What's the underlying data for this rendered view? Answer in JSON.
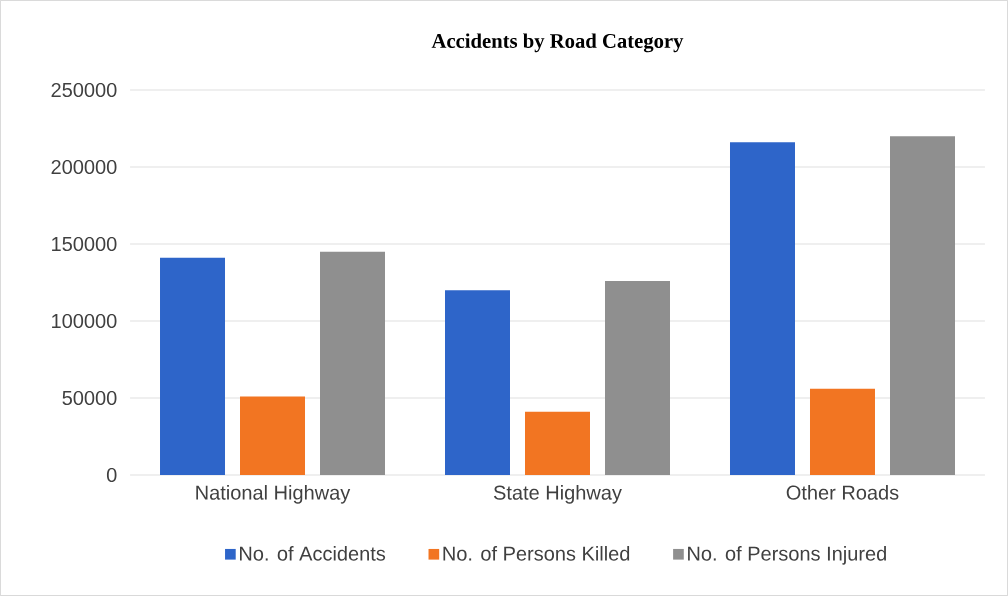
{
  "chart_data": {
    "type": "bar",
    "title": "Accidents by Road Category",
    "categories": [
      "National Highway",
      "State Highway",
      "Other Roads"
    ],
    "series": [
      {
        "name": "No. of Accidents",
        "color": "#2e65c9",
        "values": [
          141000,
          120000,
          216000
        ]
      },
      {
        "name": "No. of Persons Killed",
        "color": "#f27522",
        "values": [
          51000,
          41000,
          56000
        ]
      },
      {
        "name": "No. of Persons Injured",
        "color": "#8f8f8f",
        "values": [
          145000,
          126000,
          220000
        ]
      }
    ],
    "ylim": [
      0,
      250000
    ],
    "yticks": [
      0,
      50000,
      100000,
      150000,
      200000,
      250000
    ],
    "grid": "y",
    "legend": "bottom"
  }
}
